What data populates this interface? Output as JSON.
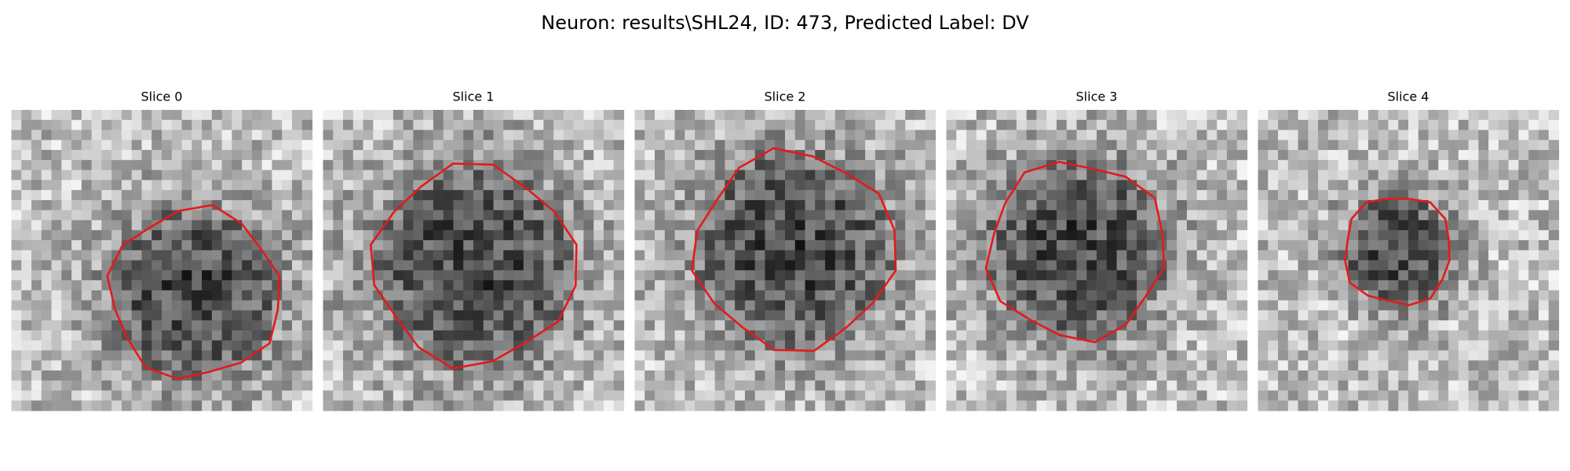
{
  "title": "Neuron: results\\SHL24, ID: 473, Predicted Label: DV",
  "panels": [
    {
      "title": "Slice 0"
    },
    {
      "title": "Slice 1"
    },
    {
      "title": "Slice 2"
    },
    {
      "title": "Slice 3"
    },
    {
      "title": "Slice 4"
    }
  ]
}
